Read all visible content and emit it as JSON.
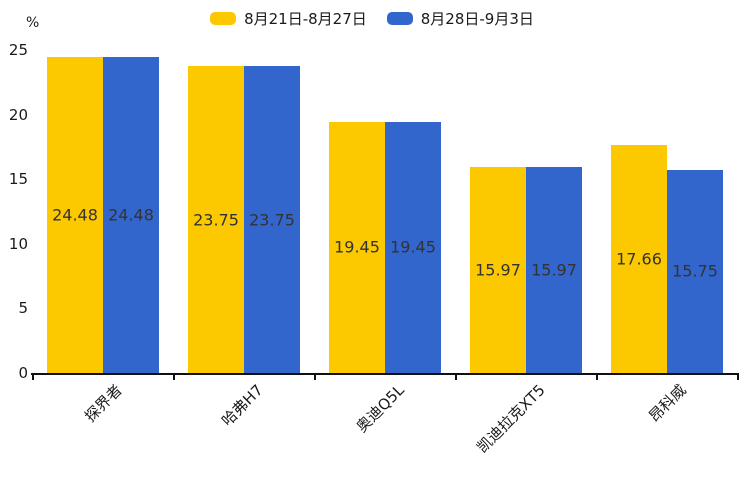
{
  "chart_data": {
    "type": "bar",
    "title": "",
    "categories": [
      "探界者",
      "哈弗H7",
      "奥迪Q5L",
      "凯迪拉克XT5",
      "昂科威"
    ],
    "series": [
      {
        "name": "8月21日-8月27日",
        "color": "#FCC800",
        "values": [
          24.48,
          23.75,
          19.45,
          15.97,
          17.66
        ]
      },
      {
        "name": "8月28日-9月3日",
        "color": "#3366CC",
        "values": [
          24.48,
          23.75,
          19.45,
          15.97,
          15.75
        ]
      }
    ],
    "xlabel": "",
    "ylabel": "%",
    "ylim": [
      0,
      25
    ],
    "yticks": [
      0,
      5,
      10,
      15,
      20,
      25
    ],
    "grid": false,
    "legend_position": "top-center",
    "value_labels": "inside-middle",
    "xtick_rotation": 45
  },
  "colors": {
    "background": "#ffffff",
    "axis": "#111111",
    "tick_text": "#1a1a1a",
    "value_label_text": "#333333"
  }
}
